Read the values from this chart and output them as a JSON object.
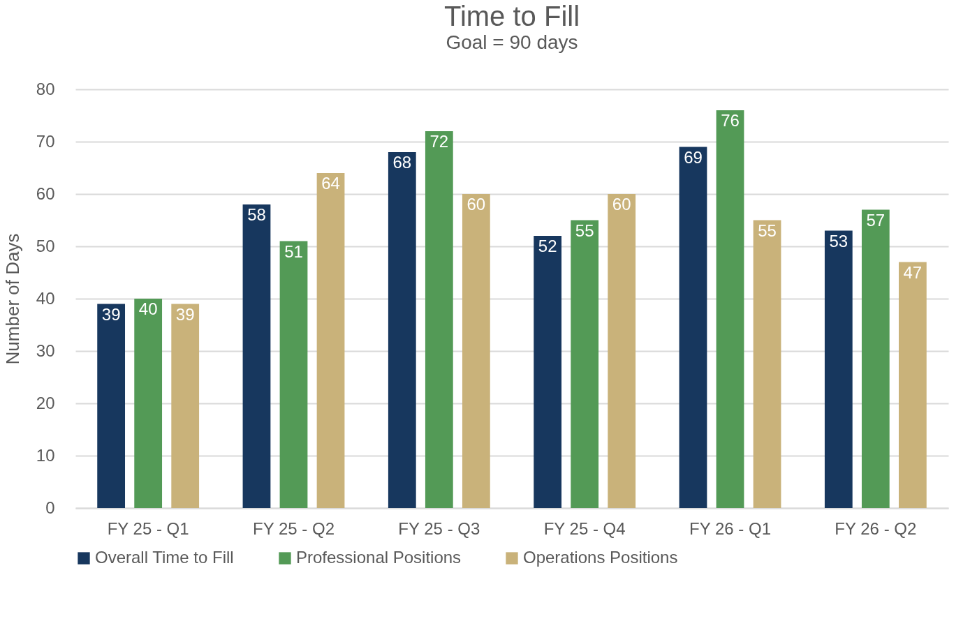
{
  "chart_data": {
    "type": "bar",
    "title": "Time to Fill",
    "subtitle": "Goal = 90 days",
    "ylabel": "Number of Days",
    "categories": [
      "FY 25 - Q1",
      "FY 25 - Q2",
      "FY 25 - Q3",
      "FY 25 - Q4",
      "FY 26 - Q1",
      "FY 26 - Q2"
    ],
    "series": [
      {
        "name": "Overall Time to Fill",
        "color": "#17375e",
        "values": [
          39,
          58,
          68,
          52,
          69,
          53
        ]
      },
      {
        "name": "Professional Positions",
        "color": "#539a56",
        "values": [
          40,
          51,
          72,
          55,
          76,
          57
        ]
      },
      {
        "name": "Operations Positions",
        "color": "#c9b27a",
        "values": [
          39,
          64,
          60,
          60,
          55,
          47
        ]
      }
    ],
    "ylim": [
      0,
      80
    ],
    "yticks": [
      0,
      10,
      20,
      30,
      40,
      50,
      60,
      70,
      80
    ],
    "grid": "y",
    "legend": "bottom",
    "data_labels": true
  }
}
